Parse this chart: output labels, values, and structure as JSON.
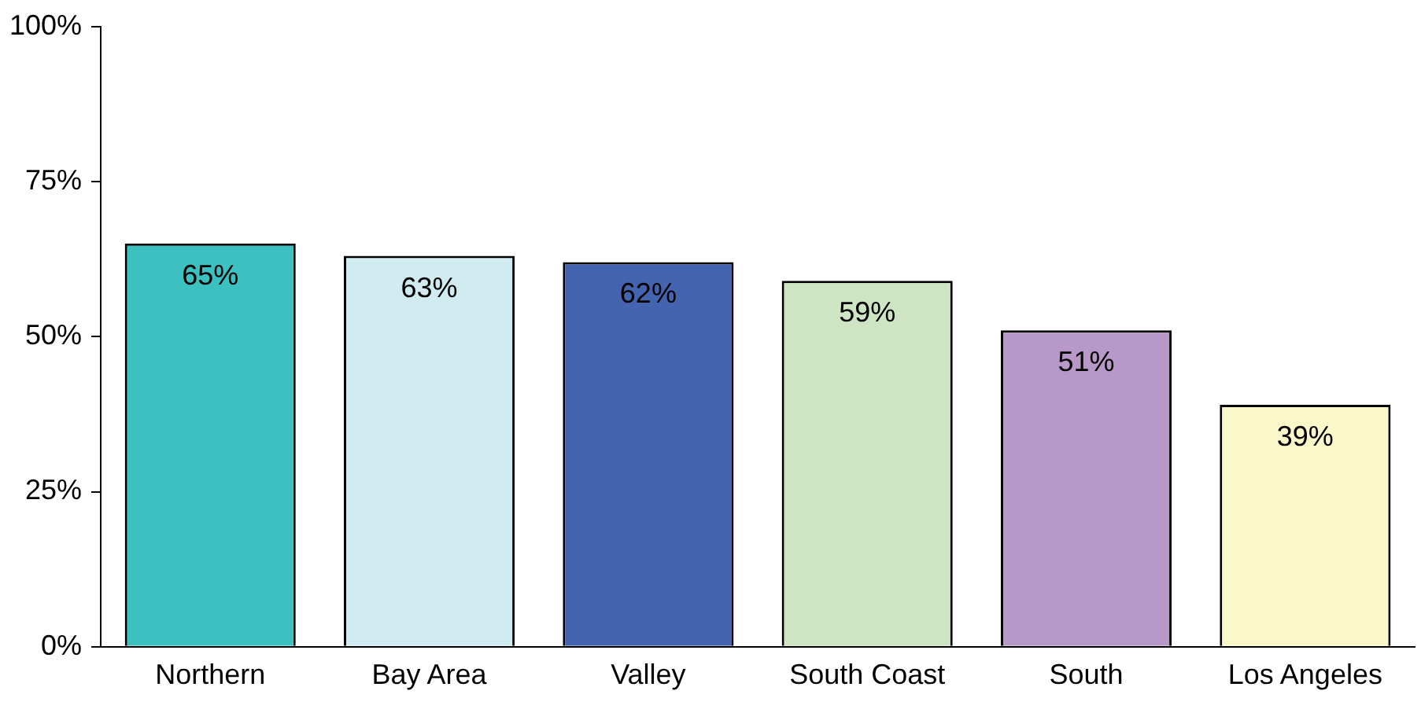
{
  "chart_data": {
    "type": "bar",
    "categories": [
      "Northern",
      "Bay Area",
      "Valley",
      "South Coast",
      "South",
      "Los Angeles"
    ],
    "values": [
      65,
      63,
      62,
      59,
      51,
      39
    ],
    "colors": [
      "#3cc0c0",
      "#d0ecf0",
      "#4464b0",
      "#cde5c2",
      "#b898c8",
      "#faf7c8"
    ],
    "value_labels": [
      "65%",
      "63%",
      "62%",
      "59%",
      "51%",
      "39%"
    ],
    "ylim": [
      0,
      100
    ],
    "yticks": [
      {
        "value": 0,
        "label": "0%"
      },
      {
        "value": 25,
        "label": "25%"
      },
      {
        "value": 50,
        "label": "50%"
      },
      {
        "value": 75,
        "label": "75%"
      },
      {
        "value": 100,
        "label": "100%"
      }
    ],
    "grid": false,
    "legend": false
  }
}
